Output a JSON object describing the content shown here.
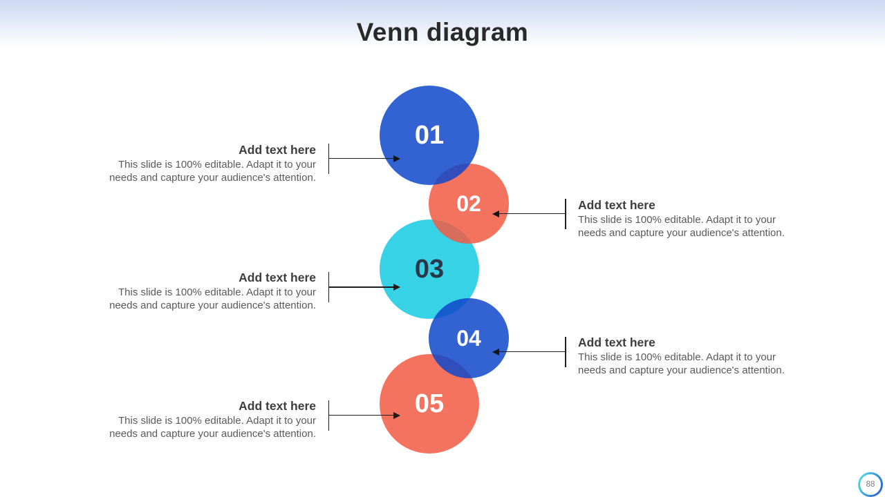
{
  "slide": {
    "title": "Venn diagram",
    "page_number": "88"
  },
  "diagram": {
    "type": "venn-stacked-circles",
    "circles": [
      {
        "label": "01",
        "color": "#0F48CA",
        "color_name": "blue",
        "size": "large"
      },
      {
        "label": "02",
        "color": "#F25A42",
        "color_name": "coral",
        "size": "small"
      },
      {
        "label": "03",
        "color": "#15CAE2",
        "color_name": "cyan",
        "size": "large"
      },
      {
        "label": "04",
        "color": "#0F48CA",
        "color_name": "blue",
        "size": "small"
      },
      {
        "label": "05",
        "color": "#F25A42",
        "color_name": "coral",
        "size": "large"
      }
    ],
    "overlap_style": "semi-transparent blend"
  },
  "callouts": {
    "left": [
      {
        "heading": "Add text here",
        "body": "This slide is 100% editable. Adapt it to your needs and capture your audience's attention.",
        "points_to": "01"
      },
      {
        "heading": "Add text here",
        "body": "This slide is 100% editable. Adapt it to your needs and capture your audience's attention.",
        "points_to": "03"
      },
      {
        "heading": "Add text here",
        "body": "This slide is 100% editable. Adapt it to your needs and capture your audience's attention.",
        "points_to": "05"
      }
    ],
    "right": [
      {
        "heading": "Add text here",
        "body": "This slide is 100% editable. Adapt it to your needs and capture your audience's attention.",
        "points_to": "02"
      },
      {
        "heading": "Add text here",
        "body": "This slide is 100% editable. Adapt it to your needs and capture your audience's attention.",
        "points_to": "04"
      }
    ]
  },
  "colors": {
    "header_gradient_top": "#CCD8F3",
    "title_text": "#292929",
    "callout_heading": "#3D3D3D",
    "callout_body": "#595959",
    "connector_line": "#1C1C1C",
    "circle_number_light": "#FFFFFF",
    "circle_number_dark": "#293949",
    "badge_ring_cyan": "#49D7E7",
    "badge_ring_blue": "#2E6CD7"
  }
}
